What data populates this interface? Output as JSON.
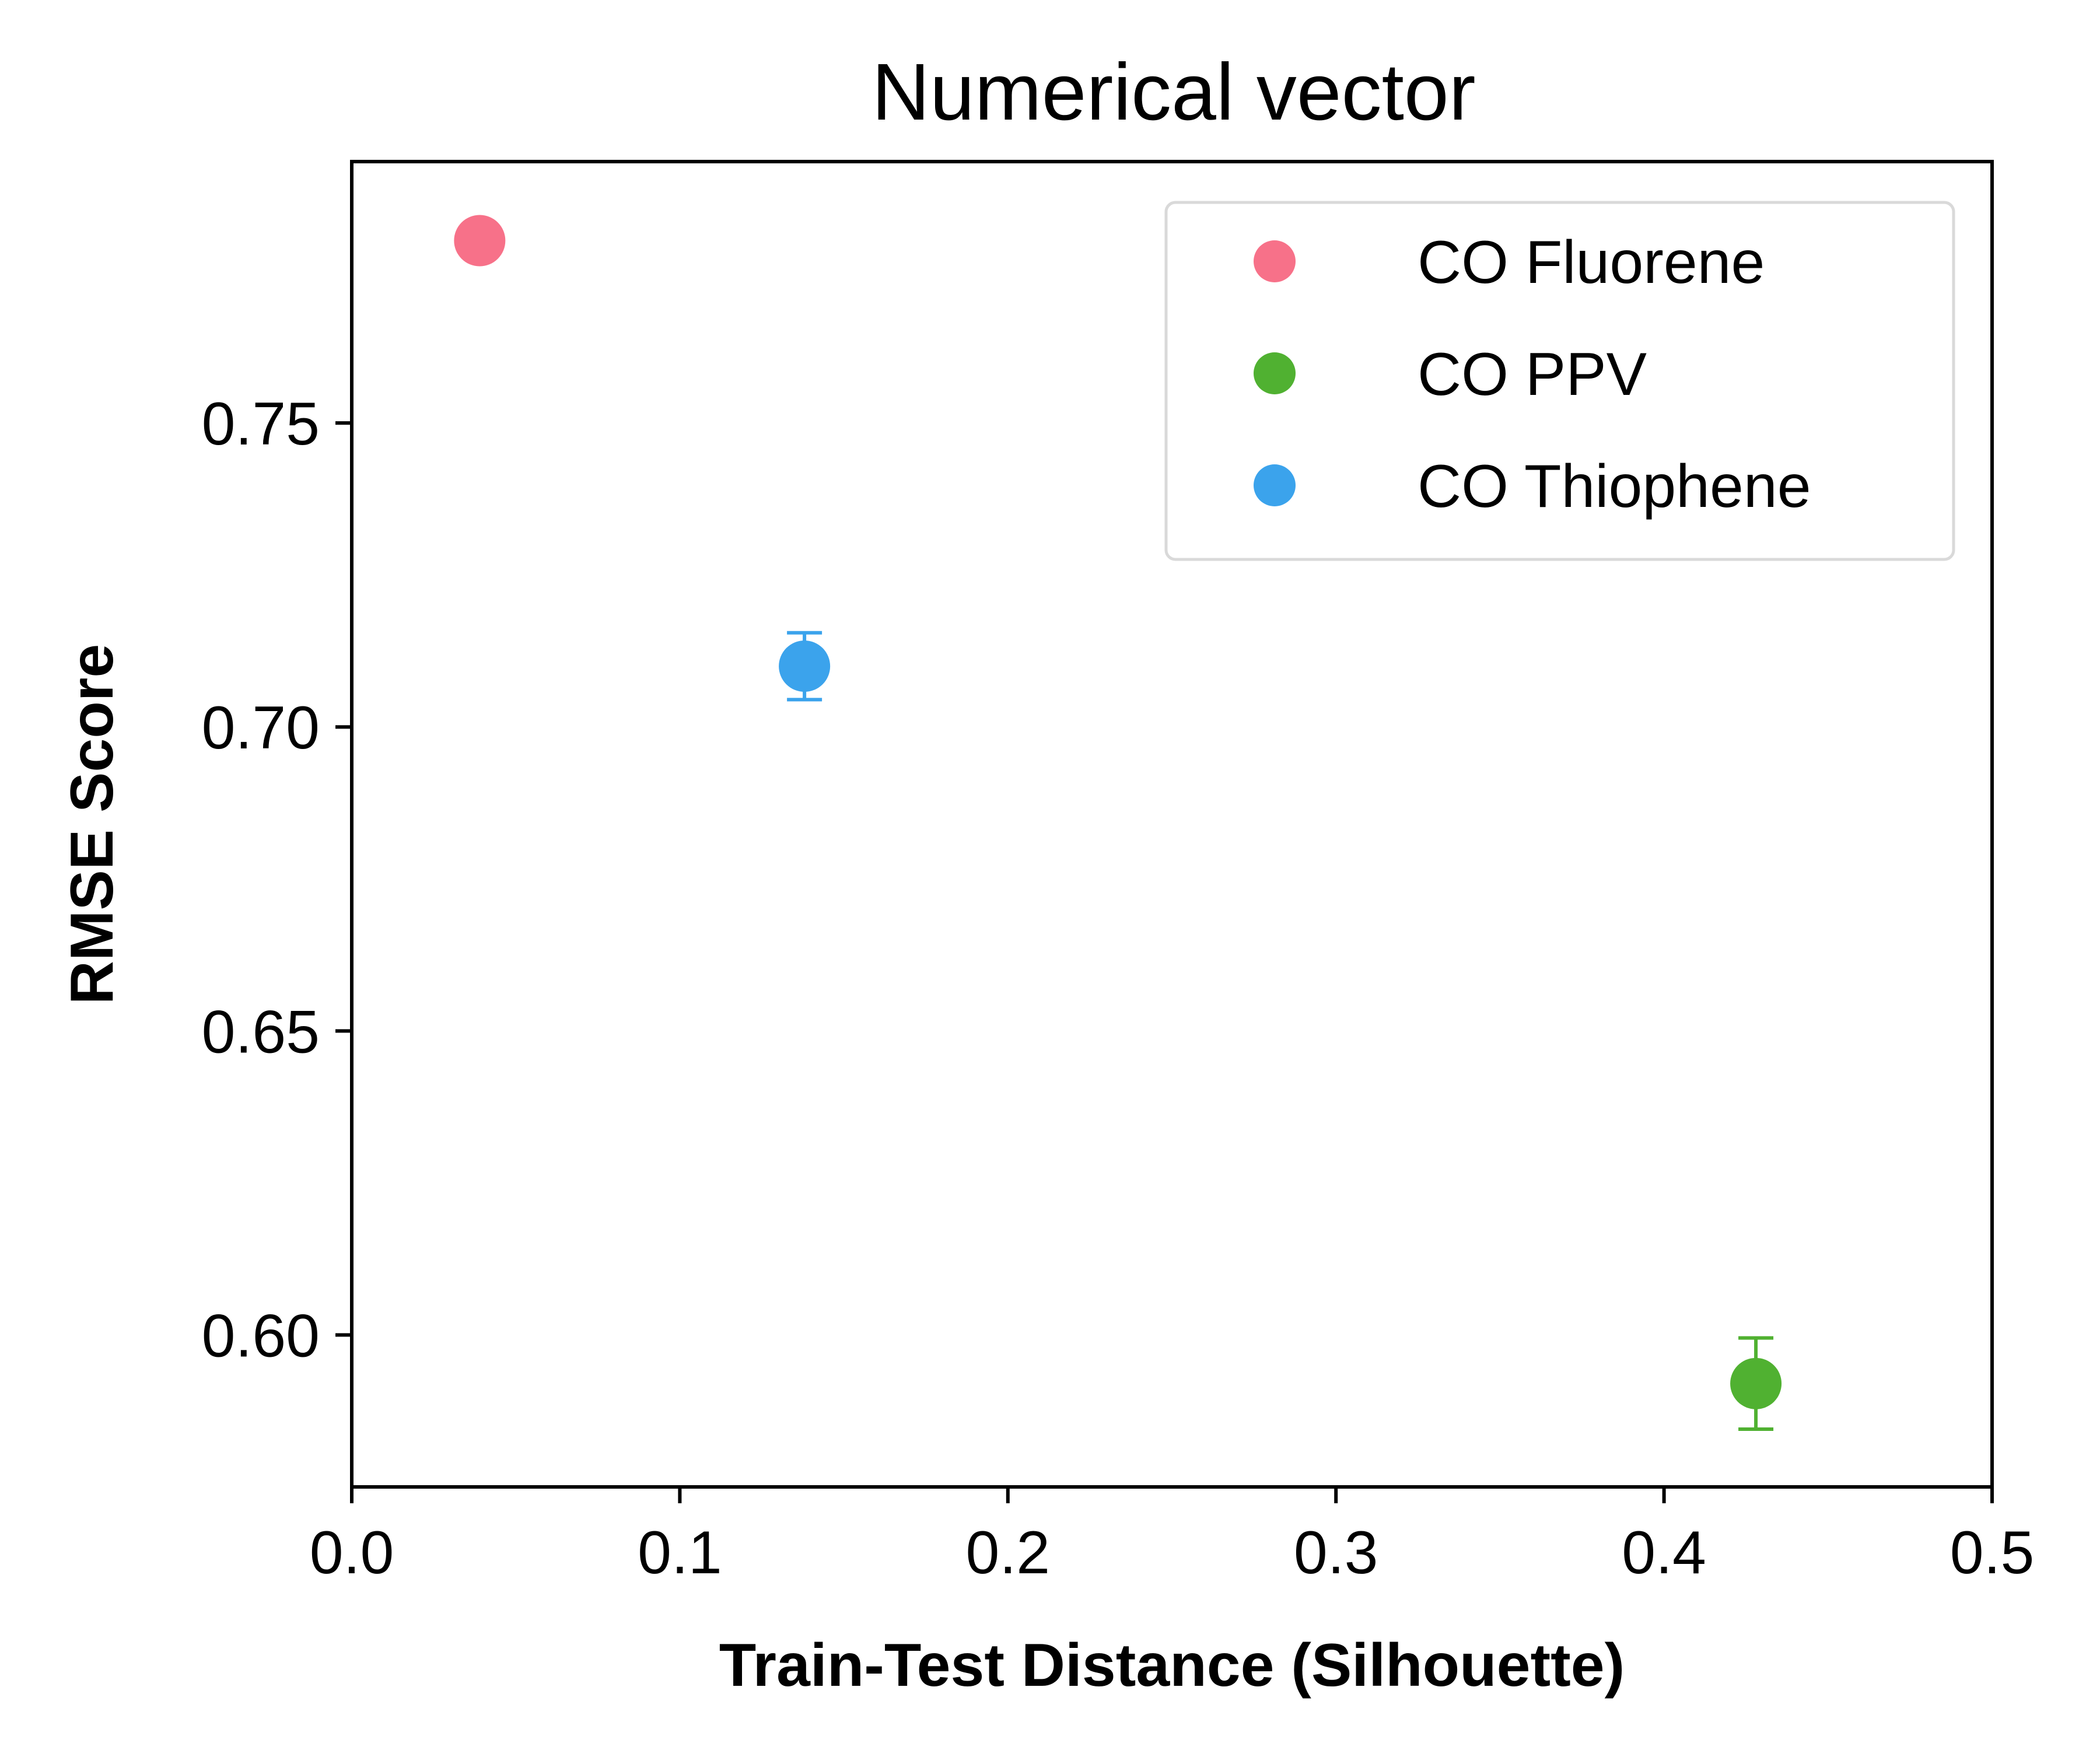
{
  "chart_data": {
    "type": "scatter",
    "title": "Numerical vector",
    "xlabel": "Train-Test Distance (Silhouette)",
    "ylabel": "RMSE Score",
    "xlim": [
      0.0,
      0.5
    ],
    "ylim": [
      0.575,
      0.793
    ],
    "xticks": [
      0.0,
      0.1,
      0.2,
      0.3,
      0.4,
      0.5
    ],
    "xtick_labels": [
      "0.0",
      "0.1",
      "0.2",
      "0.3",
      "0.4",
      "0.5"
    ],
    "yticks": [
      0.6,
      0.65,
      0.7,
      0.75
    ],
    "ytick_labels": [
      "0.60",
      "0.65",
      "0.70",
      "0.75"
    ],
    "grid": false,
    "legend_position": "top-right",
    "series": [
      {
        "name": "CO Fluorene",
        "color": "#f77189",
        "x": 0.039,
        "y": 0.78,
        "yerr": 0.0
      },
      {
        "name": "CO PPV",
        "color": "#50b131",
        "x": 0.428,
        "y": 0.592,
        "yerr": 0.0075
      },
      {
        "name": "CO Thiophene",
        "color": "#3ba3ec",
        "x": 0.138,
        "y": 0.71,
        "yerr": 0.0055
      }
    ]
  }
}
